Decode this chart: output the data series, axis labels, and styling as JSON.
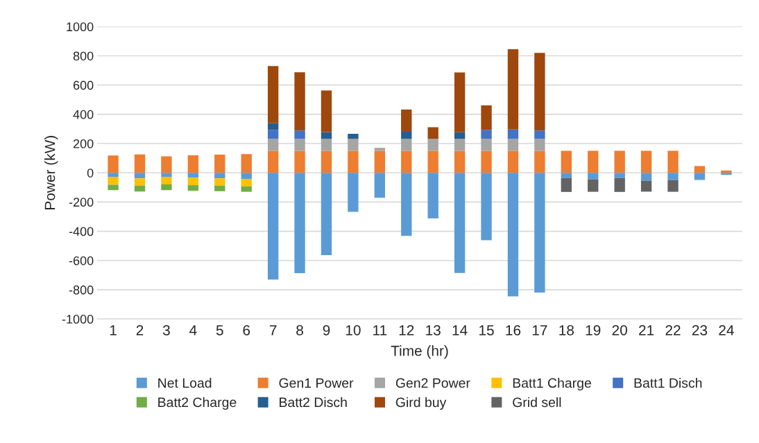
{
  "chart_data": {
    "type": "bar",
    "stacked": true,
    "xlabel": "Time (hr)",
    "ylabel": "Power (kW)",
    "categories": [
      "1",
      "2",
      "3",
      "4",
      "5",
      "6",
      "7",
      "8",
      "9",
      "10",
      "11",
      "12",
      "13",
      "14",
      "15",
      "16",
      "17",
      "18",
      "19",
      "20",
      "21",
      "22",
      "23",
      "24"
    ],
    "series": [
      {
        "name": "Net Load",
        "color": "#5b9bd5",
        "values": [
          -28,
          -38,
          -28,
          -34,
          -38,
          -42,
          -730,
          -687,
          -563,
          -267,
          -171,
          -432,
          -312,
          -686,
          -461,
          -845,
          -820,
          -36,
          -45,
          -36,
          -54,
          -50,
          -49,
          -15
        ]
      },
      {
        "name": "Gen1 Power",
        "color": "#ed7d31",
        "values": [
          118,
          125,
          113,
          119,
          124,
          128,
          150,
          150,
          150,
          150,
          150,
          150,
          150,
          150,
          150,
          150,
          150,
          150,
          150,
          150,
          150,
          150,
          46,
          15
        ]
      },
      {
        "name": "Gen2 Power",
        "color": "#a5a5a5",
        "values": [
          0,
          0,
          0,
          0,
          0,
          0,
          82,
          82,
          82,
          82,
          21,
          82,
          82,
          82,
          82,
          82,
          82,
          0,
          0,
          0,
          0,
          0,
          0,
          0
        ]
      },
      {
        "name": "Batt1 Charge",
        "color": "#ffc000",
        "values": [
          -54,
          -50,
          -52,
          -51,
          -50,
          -51,
          0,
          0,
          0,
          0,
          0,
          0,
          0,
          0,
          0,
          0,
          0,
          0,
          0,
          0,
          0,
          0,
          0,
          0
        ]
      },
      {
        "name": "Batt1 Disch",
        "color": "#4472c4",
        "values": [
          0,
          0,
          0,
          0,
          0,
          0,
          61,
          57,
          0,
          0,
          0,
          0,
          0,
          0,
          62,
          64,
          57,
          0,
          0,
          0,
          0,
          0,
          0,
          0
        ]
      },
      {
        "name": "Batt2 Charge",
        "color": "#70ad47",
        "values": [
          -37,
          -40,
          -39,
          -38,
          -38,
          -37,
          0,
          0,
          0,
          0,
          0,
          0,
          0,
          0,
          0,
          0,
          0,
          0,
          0,
          0,
          0,
          0,
          0,
          0
        ]
      },
      {
        "name": "Batt2 Disch",
        "color": "#255e91",
        "values": [
          0,
          0,
          0,
          0,
          0,
          0,
          46,
          0,
          46,
          35,
          0,
          49,
          0,
          45,
          0,
          0,
          0,
          0,
          0,
          0,
          0,
          0,
          0,
          0
        ]
      },
      {
        "name": "Gird buy",
        "color": "#9e480e",
        "values": [
          0,
          0,
          0,
          0,
          0,
          0,
          391,
          398,
          285,
          0,
          0,
          151,
          80,
          409,
          167,
          549,
          531,
          0,
          0,
          0,
          0,
          0,
          0,
          0
        ]
      },
      {
        "name": "Grid sell",
        "color": "#636363",
        "values": [
          0,
          0,
          0,
          0,
          0,
          0,
          0,
          0,
          0,
          0,
          0,
          0,
          0,
          0,
          0,
          0,
          0,
          -95,
          -85,
          -95,
          -75,
          -80,
          0,
          0
        ]
      }
    ],
    "ylim": [
      -1000,
      1000
    ],
    "yticks": [
      -1000,
      -800,
      -600,
      -400,
      -200,
      0,
      200,
      400,
      600,
      800,
      1000
    ],
    "grid": "y",
    "legend": "bottom"
  }
}
